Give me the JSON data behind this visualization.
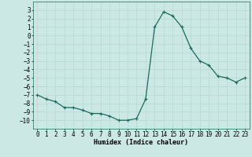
{
  "x": [
    0,
    1,
    2,
    3,
    4,
    5,
    6,
    7,
    8,
    9,
    10,
    11,
    12,
    13,
    14,
    15,
    16,
    17,
    18,
    19,
    20,
    21,
    22,
    23
  ],
  "y": [
    -7.0,
    -7.5,
    -7.8,
    -8.5,
    -8.5,
    -8.8,
    -9.2,
    -9.2,
    -9.5,
    -10.0,
    -10.0,
    -9.8,
    -7.5,
    1.0,
    2.8,
    2.3,
    1.0,
    -1.5,
    -3.0,
    -3.5,
    -4.8,
    -5.0,
    -5.5,
    -5.0
  ],
  "line_color": "#1a6b5a",
  "marker": "+",
  "marker_size": 3,
  "linewidth": 0.9,
  "xlabel": "Humidex (Indice chaleur)",
  "xlim": [
    -0.5,
    23.5
  ],
  "ylim": [
    -11,
    4
  ],
  "yticks": [
    3,
    2,
    1,
    0,
    -1,
    -2,
    -3,
    -4,
    -5,
    -6,
    -7,
    -8,
    -9,
    -10
  ],
  "xticks": [
    0,
    1,
    2,
    3,
    4,
    5,
    6,
    7,
    8,
    9,
    10,
    11,
    12,
    13,
    14,
    15,
    16,
    17,
    18,
    19,
    20,
    21,
    22,
    23
  ],
  "bg_color": "#cce8e5",
  "grid_color": "#aed4d0",
  "label_fontsize": 6,
  "tick_fontsize": 5.5
}
